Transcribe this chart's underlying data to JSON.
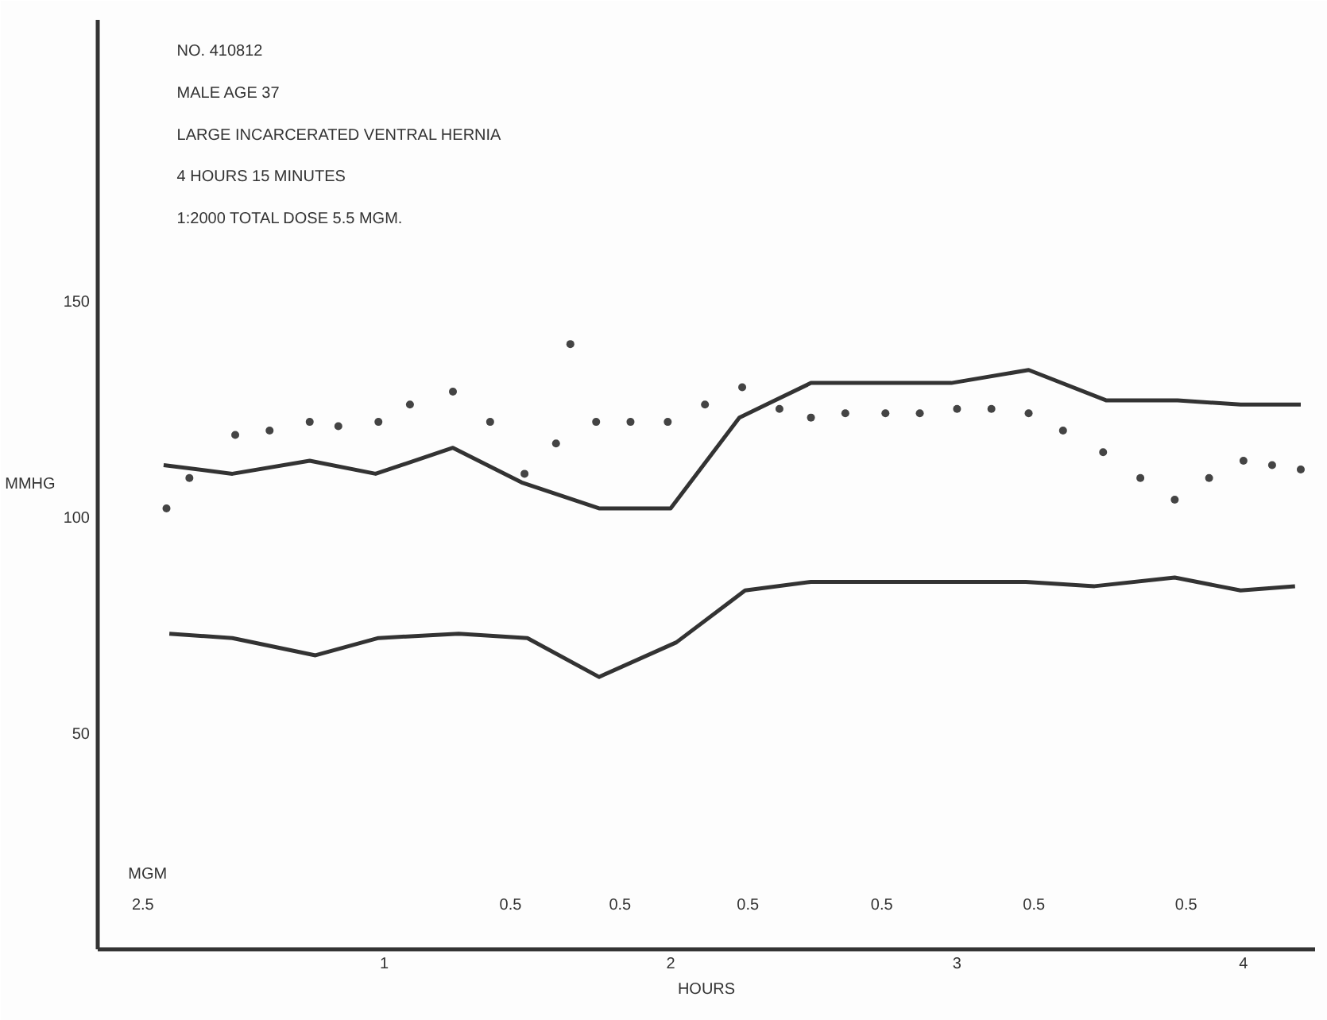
{
  "chart_data": {
    "type": "line",
    "xlabel": "HOURS",
    "ylabel": "MMHG",
    "xlim": [
      0,
      4.25
    ],
    "ylim": [
      0,
      215
    ],
    "xticks": [
      1,
      2,
      3,
      4
    ],
    "yticks": [
      50,
      100,
      150
    ],
    "grid": false,
    "line_style": "solid",
    "annotations": [
      "NO. 410812",
      "MALE AGE 37",
      "LARGE INCARCERATED VENTRAL HERNIA",
      "4 HOURS 15 MINUTES",
      "1:2000 TOTAL DOSE 5.5 MGM.",
      "MGM",
      "2.5",
      "0.5",
      "0.5",
      "0.5",
      "0.5",
      "0.5",
      "0.5"
    ],
    "series": [
      {
        "color": "#333333",
        "x": [
          0.23,
          0.47,
          0.74,
          0.97,
          1.24,
          1.48,
          1.75,
          2.0,
          2.24,
          2.49,
          2.98,
          3.25,
          3.52,
          3.77,
          3.99,
          4.2
        ],
        "values": [
          112,
          110,
          113,
          110,
          116,
          108,
          102,
          102,
          123,
          131,
          131,
          134,
          127,
          127,
          126,
          126
        ]
      },
      {
        "color": "#333333",
        "x": [
          0.25,
          0.47,
          0.76,
          0.98,
          1.26,
          1.5,
          1.75,
          2.02,
          2.26,
          2.49,
          2.96,
          3.24,
          3.48,
          3.76,
          3.99,
          4.18
        ],
        "values": [
          73,
          72,
          68,
          72,
          73,
          72,
          63,
          71,
          83,
          85,
          85,
          85,
          84,
          86,
          83,
          84
        ]
      },
      {
        "type": "scatter",
        "color": "#444444",
        "marker": "circle",
        "x": [
          0.24,
          0.32,
          0.48,
          0.6,
          0.74,
          0.84,
          0.98,
          1.09,
          1.24,
          1.37,
          1.49,
          1.6,
          1.65,
          1.74,
          1.86,
          1.99,
          2.12,
          2.25,
          2.38,
          2.49,
          2.61,
          2.75,
          2.87,
          3.0,
          3.12,
          3.25,
          3.37,
          3.51,
          3.64,
          3.76,
          3.88,
          4.0,
          4.1,
          4.2
        ],
        "values": [
          102,
          109,
          119,
          120,
          122,
          121,
          122,
          126,
          129,
          122,
          110,
          117,
          140,
          122,
          122,
          122,
          126,
          130,
          125,
          123,
          124,
          124,
          124,
          125,
          125,
          124,
          120,
          115,
          109,
          104,
          109,
          113,
          112,
          111
        ]
      }
    ]
  }
}
